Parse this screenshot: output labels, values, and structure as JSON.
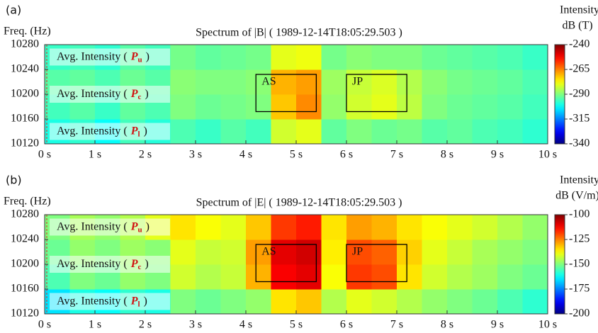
{
  "chart_data": [
    {
      "type": "heatmap",
      "panel_label": "(a)",
      "title": "Spectrum of |B| ( 1989-12-14T18:05:29.503 )",
      "y_label": "Freq. (Hz)",
      "colorbar_title": "Intensity",
      "colorbar_unit": "dB (T)",
      "colormap": "jet",
      "xbins": [
        0,
        0.5,
        1,
        1.5,
        2,
        2.5,
        3,
        3.5,
        4,
        4.5,
        5,
        5.5,
        6,
        6.5,
        7,
        7.5,
        8,
        8.5,
        9,
        9.5,
        10
      ],
      "ybins": [
        10120,
        10160,
        10200,
        10240,
        10280
      ],
      "values": [
        [
          -300,
          -298,
          -302,
          -296,
          -299,
          -295,
          -297,
          -294,
          -296,
          -282,
          -280,
          -293,
          -290,
          -292,
          -291,
          -294,
          -293,
          -295,
          -296,
          -298
        ],
        [
          -296,
          -294,
          -297,
          -293,
          -295,
          -290,
          -292,
          -291,
          -290,
          -272,
          -266,
          -288,
          -282,
          -280,
          -284,
          -290,
          -292,
          -293,
          -294,
          -296
        ],
        [
          -294,
          -293,
          -295,
          -292,
          -294,
          -289,
          -290,
          -290,
          -289,
          -270,
          -268,
          -287,
          -283,
          -281,
          -285,
          -289,
          -291,
          -292,
          -293,
          -295
        ],
        [
          -297,
          -296,
          -298,
          -294,
          -296,
          -291,
          -293,
          -292,
          -291,
          -280,
          -279,
          -291,
          -289,
          -290,
          -290,
          -292,
          -293,
          -294,
          -295,
          -297
        ]
      ],
      "xlim": [
        0,
        10
      ],
      "xticks": [
        {
          "value": 0,
          "label": "0 s"
        },
        {
          "value": 1,
          "label": "1 s"
        },
        {
          "value": 2,
          "label": "2 s"
        },
        {
          "value": 3,
          "label": "3 s"
        },
        {
          "value": 4,
          "label": "4 s"
        },
        {
          "value": 5,
          "label": "5 s"
        },
        {
          "value": 6,
          "label": "6 s"
        },
        {
          "value": 7,
          "label": "7 s"
        },
        {
          "value": 8,
          "label": "8 s"
        },
        {
          "value": 9,
          "label": "9 s"
        },
        {
          "value": 10,
          "label": "10 s"
        }
      ],
      "ylim": [
        10120,
        10280
      ],
      "yticks": [
        10120,
        10160,
        10200,
        10240,
        10280
      ],
      "clim": [
        -340,
        -240
      ],
      "cticks": [
        -340,
        -315,
        -290,
        -265,
        -240
      ],
      "annotations": [
        {
          "text": "AS",
          "x": [
            4.2,
            5.4
          ],
          "y": [
            10172,
            10232
          ]
        },
        {
          "text": "JP",
          "x": [
            6.0,
            7.2
          ],
          "y": [
            10172,
            10232
          ]
        }
      ],
      "overlay_labels": [
        {
          "text": "Avg. Intensity (",
          "symbol": "P",
          "subscript": "u",
          "close": ")"
        },
        {
          "text": "Avg. Intensity (",
          "symbol": "P",
          "subscript": "c",
          "close": ")"
        },
        {
          "text": "Avg. Intensity (",
          "symbol": "P",
          "subscript": "l",
          "close": ")"
        }
      ]
    },
    {
      "type": "heatmap",
      "panel_label": "(b)",
      "title": "Spectrum of |E| ( 1989-12-14T18:05:29.503 )",
      "y_label": "Freq. (Hz)",
      "colorbar_title": "Intensity",
      "colorbar_unit": "dB (V/m)",
      "colormap": "jet",
      "xbins": [
        0,
        0.5,
        1,
        1.5,
        2,
        2.5,
        3,
        3.5,
        4,
        4.5,
        5,
        5.5,
        6,
        6.5,
        7,
        7.5,
        8,
        8.5,
        9,
        9.5,
        10
      ],
      "ybins": [
        10120,
        10160,
        10200,
        10240,
        10280
      ],
      "values": [
        [
          -165,
          -160,
          -162,
          -158,
          -160,
          -150,
          -152,
          -150,
          -148,
          -135,
          -132,
          -145,
          -140,
          -142,
          -145,
          -148,
          -150,
          -152,
          -155,
          -158
        ],
        [
          -155,
          -150,
          -152,
          -148,
          -150,
          -142,
          -145,
          -143,
          -130,
          -112,
          -110,
          -138,
          -118,
          -120,
          -135,
          -142,
          -145,
          -147,
          -150,
          -152
        ],
        [
          -152,
          -148,
          -150,
          -147,
          -149,
          -140,
          -143,
          -142,
          -128,
          -110,
          -108,
          -136,
          -120,
          -122,
          -133,
          -140,
          -143,
          -146,
          -148,
          -150
        ],
        [
          -150,
          -146,
          -148,
          -145,
          -140,
          -135,
          -138,
          -140,
          -132,
          -118,
          -115,
          -135,
          -128,
          -130,
          -135,
          -138,
          -140,
          -142,
          -145,
          -148
        ]
      ],
      "xlim": [
        0,
        10
      ],
      "xticks": [
        {
          "value": 0,
          "label": "0 s"
        },
        {
          "value": 1,
          "label": "1 s"
        },
        {
          "value": 2,
          "label": "2 s"
        },
        {
          "value": 3,
          "label": "3 s"
        },
        {
          "value": 4,
          "label": "4 s"
        },
        {
          "value": 5,
          "label": "5 s"
        },
        {
          "value": 6,
          "label": "6 s"
        },
        {
          "value": 7,
          "label": "7 s"
        },
        {
          "value": 8,
          "label": "8 s"
        },
        {
          "value": 9,
          "label": "9 s"
        },
        {
          "value": 10,
          "label": "10 s"
        }
      ],
      "ylim": [
        10120,
        10280
      ],
      "yticks": [
        10120,
        10160,
        10200,
        10240,
        10280
      ],
      "clim": [
        -200,
        -100
      ],
      "cticks": [
        -200,
        -175,
        -150,
        -125,
        -100
      ],
      "annotations": [
        {
          "text": "AS",
          "x": [
            4.2,
            5.4
          ],
          "y": [
            10172,
            10232
          ]
        },
        {
          "text": "JP",
          "x": [
            6.0,
            7.2
          ],
          "y": [
            10172,
            10232
          ]
        }
      ],
      "overlay_labels": [
        {
          "text": "Avg. Intensity (",
          "symbol": "P",
          "subscript": "u",
          "close": ")"
        },
        {
          "text": "Avg. Intensity (",
          "symbol": "P",
          "subscript": "c",
          "close": ")"
        },
        {
          "text": "Avg. Intensity (",
          "symbol": "P",
          "subscript": "l",
          "close": ")"
        }
      ]
    }
  ]
}
